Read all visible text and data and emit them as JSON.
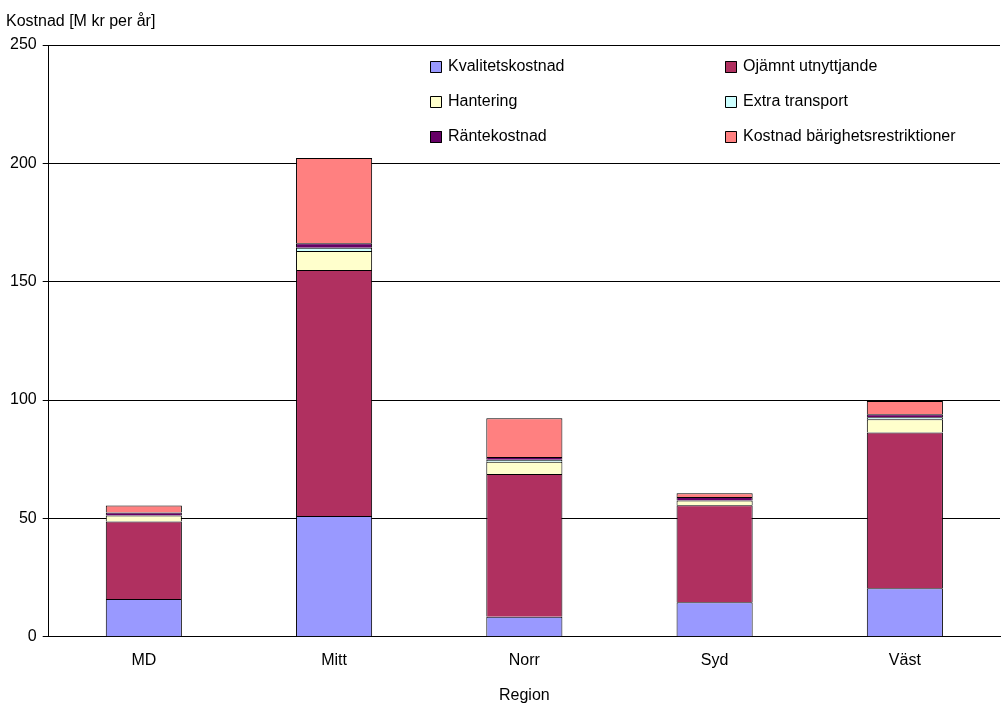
{
  "chart_data": {
    "type": "bar",
    "stacked": true,
    "xlabel": "Region",
    "ylabel": "Kostnad [M kr per år]",
    "categories": [
      "MD",
      "Mitt",
      "Norr",
      "Syd",
      "Väst"
    ],
    "series": [
      {
        "name": "Kvalitetskostnad",
        "color": "#9999ff",
        "values": [
          16,
          51,
          8.5,
          14.6,
          20.5
        ]
      },
      {
        "name": "Ojämnt utnyttjande",
        "color": "#b03060",
        "values": [
          32.7,
          104,
          60.3,
          41,
          65.8
        ]
      },
      {
        "name": "Hantering",
        "color": "#ffffcc",
        "values": [
          2.5,
          8,
          5.2,
          2,
          5.6
        ]
      },
      {
        "name": "Extra transport",
        "color": "#ccffff",
        "values": [
          null,
          1.3,
          0.8,
          null,
          0.8
        ]
      },
      {
        "name": "Räntekostnad",
        "color": "#660066",
        "values": [
          1.3,
          2,
          1.2,
          1.5,
          1.3
        ]
      },
      {
        "name": "Kostnad bärighetsrestriktioner",
        "color": "#ff8080",
        "values": [
          3,
          36,
          16.3,
          1.5,
          5.6
        ]
      }
    ],
    "ylim": [
      0,
      250
    ],
    "yticks": [
      0,
      50,
      100,
      150,
      200,
      250
    ],
    "grid": "y",
    "legend": "top right"
  }
}
